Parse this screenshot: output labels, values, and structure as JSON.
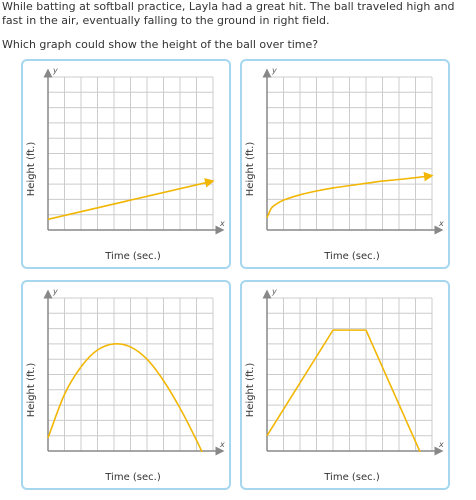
{
  "question": {
    "text": "While batting at softball practice, Layla had a great hit. The ball traveled high and fast in the air, eventually falling to the ground in right field.",
    "prompt": "Which graph could show the height of the ball over time?"
  },
  "axes": {
    "x_label": "Time (sec.)",
    "y_label": "Height (ft.)",
    "x_letter": "x",
    "y_letter": "y"
  },
  "colors": {
    "curve": "#f2b705",
    "grid": "#cccccc",
    "axis": "#888888",
    "card_border": "#a6d7ee"
  },
  "chart_data": [
    {
      "type": "line",
      "option": "top-left",
      "xlim": [
        0,
        10
      ],
      "ylim": [
        0,
        10
      ],
      "grid": true,
      "series": [
        {
          "x": [
            0,
            10
          ],
          "y": [
            0.7,
            3.2
          ],
          "arrow_end": true
        }
      ]
    },
    {
      "type": "line",
      "option": "top-right",
      "xlim": [
        0,
        10
      ],
      "ylim": [
        0,
        10
      ],
      "grid": true,
      "series": [
        {
          "x": [
            0,
            0.25,
            0.5,
            1,
            2,
            3,
            4,
            5,
            6,
            7,
            8,
            9,
            10
          ],
          "y": [
            0.8,
            1.4,
            1.65,
            1.95,
            2.3,
            2.55,
            2.75,
            2.9,
            3.05,
            3.2,
            3.3,
            3.42,
            3.55
          ],
          "arrow_end": true
        }
      ]
    },
    {
      "type": "line",
      "option": "bottom-left",
      "xlim": [
        0,
        10
      ],
      "ylim": [
        0,
        10
      ],
      "grid": true,
      "series": [
        {
          "x": [
            0,
            1,
            2,
            3,
            4,
            5,
            6,
            7,
            8,
            9,
            9.6
          ],
          "y": [
            0.85,
            3.7,
            5.5,
            6.6,
            7.0,
            6.8,
            6.0,
            4.6,
            2.8,
            0.7,
            -0.7
          ],
          "arrow_end": false
        }
      ]
    },
    {
      "type": "line",
      "option": "bottom-right",
      "xlim": [
        0,
        10
      ],
      "ylim": [
        0,
        10
      ],
      "grid": true,
      "series": [
        {
          "x": [
            0,
            4,
            6,
            9.5
          ],
          "y": [
            1.0,
            7.9,
            7.9,
            -0.6
          ],
          "arrow_end": false
        }
      ]
    }
  ]
}
